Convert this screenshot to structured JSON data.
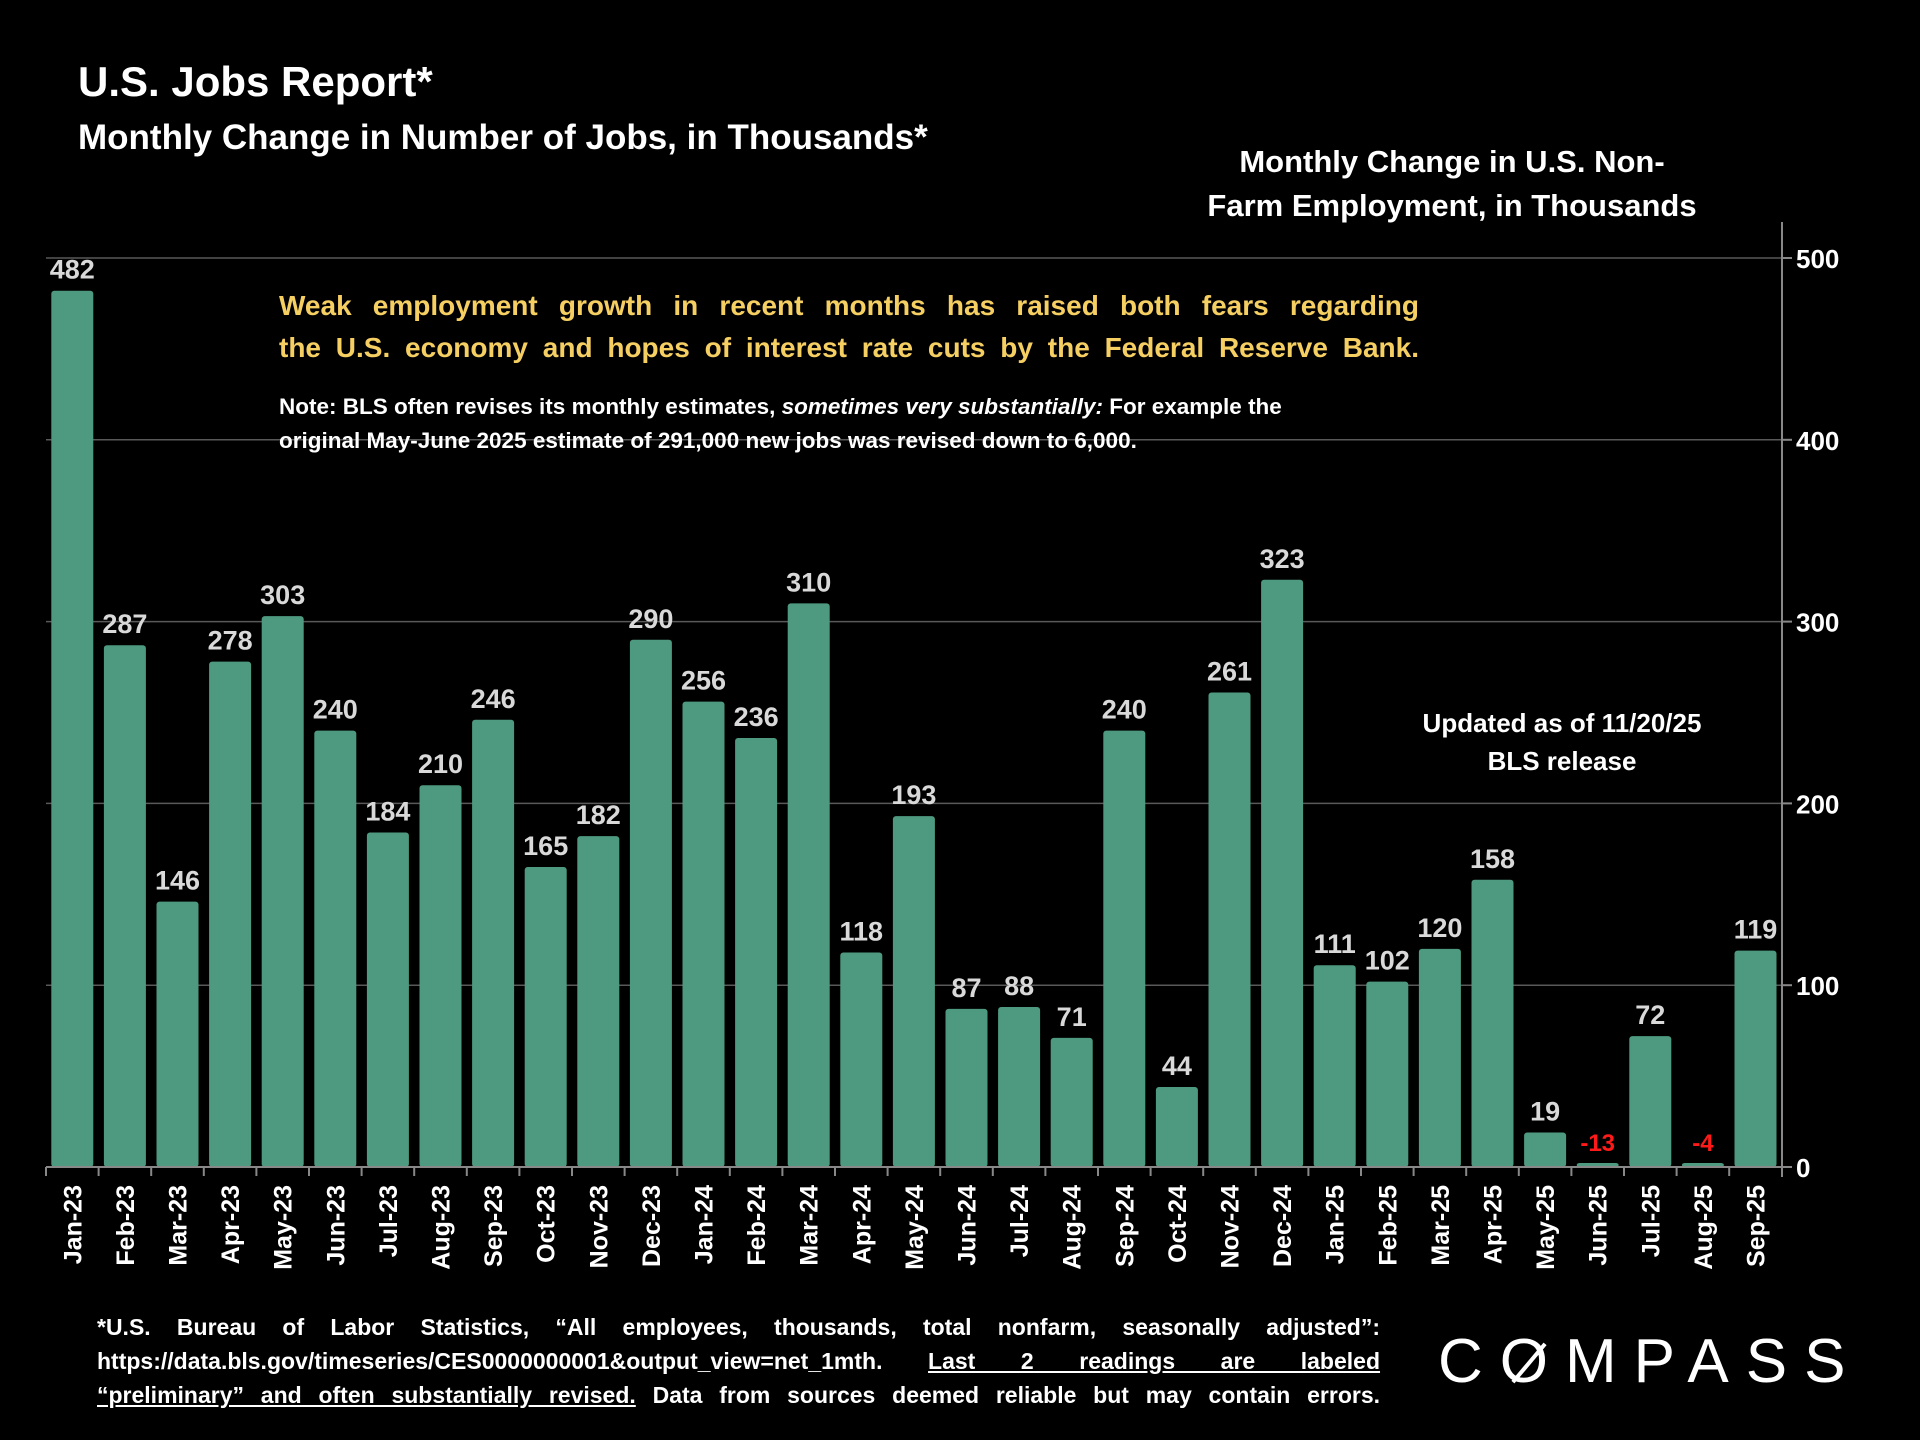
{
  "header": {
    "title": "U.S. Jobs Report*",
    "subtitle": "Monthly Change in Number of Jobs, in Thousands*"
  },
  "annotations": {
    "headline_lines": [
      "Weak employment growth in recent months has raised both fears regarding",
      "the U.S. economy and hopes of interest rate cuts by the Federal Reserve Bank."
    ],
    "note_prefix": "Note: BLS often revises its monthly estimates, ",
    "note_italic": "sometimes very substantially:",
    "note_suffix": " For example the original May-June 2025 estimate of 291,000 new jobs was revised down to 6,000.",
    "updated_line1": "Updated as of 11/20/25",
    "updated_line2": "BLS release"
  },
  "footer": {
    "line1": "*U.S. Bureau of Labor Statistics, “All employees, thousands, total nonfarm, seasonally adjusted”:",
    "line2_plain": "https://data.bls.gov/timeseries/CES0000000001&output_view=net_1mth.",
    "line2_underlined": "Last 2 readings are labeled",
    "line3_underlined": "“preliminary” and often substantially revised.",
    "line3_plain": "Data from sources deemed reliable but may contain errors."
  },
  "logo": "COMPASS",
  "colors": {
    "background": "#000000",
    "bar": "#4e9a80",
    "label": "#d9d9d9",
    "negative_label": "#ff1a1a",
    "headline": "#f6cf63",
    "grid": "#595959"
  },
  "chart_data": {
    "type": "bar",
    "title": "Monthly Change in U.S. Non-Farm Employment, in Thousands",
    "title_lines": [
      "Monthly Change in U.S. Non-",
      "Farm Employment, in Thousands"
    ],
    "categories": [
      "Jan-23",
      "Feb-23",
      "Mar-23",
      "Apr-23",
      "May-23",
      "Jun-23",
      "Jul-23",
      "Aug-23",
      "Sep-23",
      "Oct-23",
      "Nov-23",
      "Dec-23",
      "Jan-24",
      "Feb-24",
      "Mar-24",
      "Apr-24",
      "May-24",
      "Jun-24",
      "Jul-24",
      "Aug-24",
      "Sep-24",
      "Oct-24",
      "Nov-24",
      "Dec-24",
      "Jan-25",
      "Feb-25",
      "Mar-25",
      "Apr-25",
      "May-25",
      "Jun-25",
      "Jul-25",
      "Aug-25",
      "Sep-25"
    ],
    "values": [
      482,
      287,
      146,
      278,
      303,
      240,
      184,
      210,
      246,
      165,
      182,
      290,
      256,
      236,
      310,
      118,
      193,
      87,
      88,
      71,
      240,
      44,
      261,
      323,
      111,
      102,
      120,
      158,
      19,
      -13,
      72,
      -4,
      119
    ],
    "ylim": [
      0,
      500
    ],
    "yticks": [
      "0",
      "100",
      "200",
      "300",
      "400",
      "500"
    ],
    "y_axis_side": "right",
    "grid": true,
    "data_labels": true
  }
}
